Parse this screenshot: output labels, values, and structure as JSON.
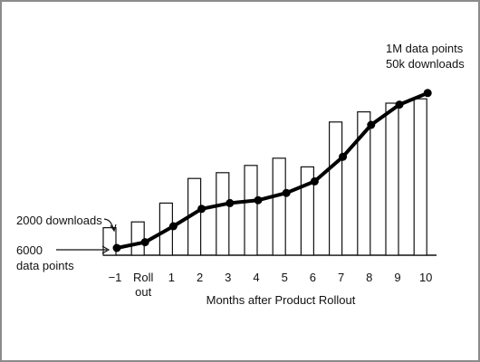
{
  "chart_data": {
    "type": "bar",
    "categories": [
      "−1",
      "Roll out",
      "1",
      "2",
      "3",
      "4",
      "5",
      "6",
      "7",
      "8",
      "9",
      "10"
    ],
    "category_lines": [
      [
        "−1"
      ],
      [
        "Roll",
        "out"
      ],
      [
        "1"
      ],
      [
        "2"
      ],
      [
        "3"
      ],
      [
        "4"
      ],
      [
        "5"
      ],
      [
        "6"
      ],
      [
        "7"
      ],
      [
        "8"
      ],
      [
        "9"
      ],
      [
        "10"
      ]
    ],
    "series": [
      {
        "type": "bar",
        "values": [
          1.9,
          2.3,
          3.6,
          5.3,
          5.7,
          6.2,
          6.7,
          6.1,
          9.2,
          9.9,
          10.5,
          10.8
        ]
      },
      {
        "type": "line",
        "values": [
          0.5,
          0.9,
          2.0,
          3.2,
          3.6,
          3.8,
          4.3,
          5.1,
          6.8,
          9.0,
          10.4,
          11.2
        ]
      }
    ],
    "xlabel": "Months after Product Rollout",
    "ylabel": "",
    "ylim": [
      0,
      12
    ],
    "grid": false,
    "legend": "none",
    "colors": {
      "bar_fill": "#ffffff",
      "bar_stroke": "#111111",
      "line": "#000000",
      "frame": "#8b8b8b"
    },
    "annotations": {
      "start_downloads": "2000 downloads",
      "start_points_lines": [
        "6000",
        "data points"
      ],
      "end_lines": [
        "1M data points",
        "50k downloads"
      ]
    }
  }
}
